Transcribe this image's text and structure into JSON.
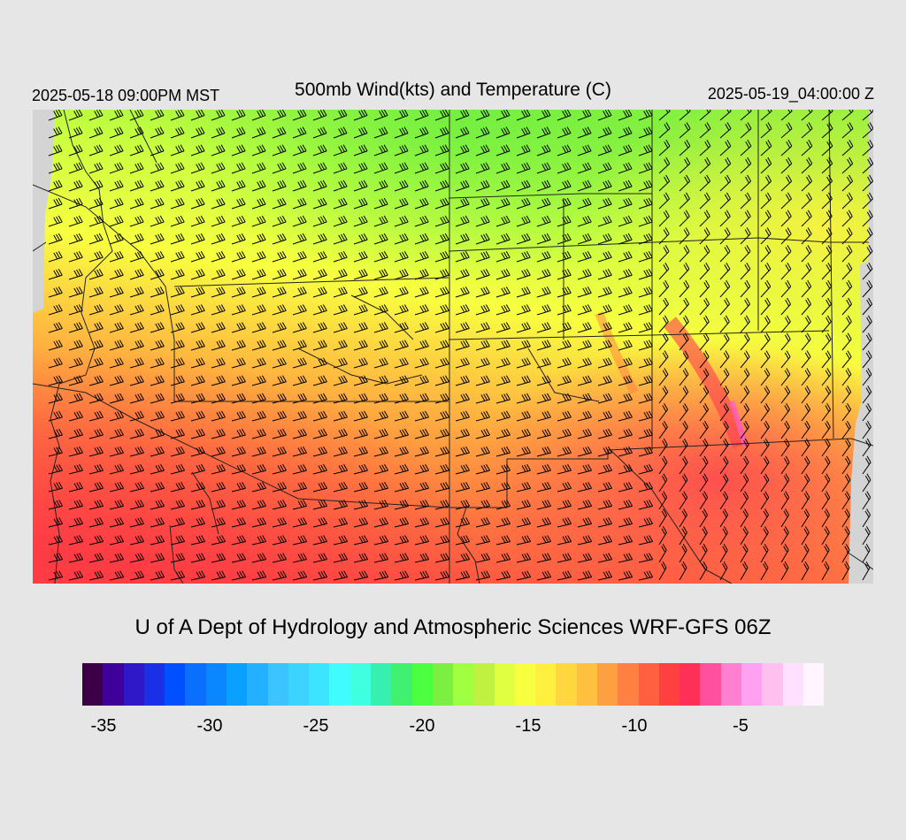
{
  "header": {
    "title": "500mb Wind(kts) and Temperature (C)",
    "valid_local": "2025-05-18 09:00PM MST",
    "valid_utc": "2025-05-19_04:00:00 Z"
  },
  "footer": {
    "credit": "U of A Dept of Hydrology and Atmospheric Sciences WRF-GFS 06Z"
  },
  "colorbar": {
    "colors": [
      "#3b0045",
      "#40009a",
      "#2e18c8",
      "#1930e6",
      "#0050ff",
      "#0a6eff",
      "#0a86ff",
      "#0aa0ff",
      "#22b0ff",
      "#3cc4ff",
      "#3cd4ff",
      "#3ce4ff",
      "#40fcff",
      "#40ffe0",
      "#36f0b0",
      "#40f070",
      "#4cff40",
      "#7cf040",
      "#a0ff40",
      "#c0f040",
      "#e0ff40",
      "#f8ff40",
      "#fff040",
      "#ffd840",
      "#ffc040",
      "#ffa040",
      "#ff8040",
      "#ff6040",
      "#ff4040",
      "#ff3058",
      "#ff50a0",
      "#ff80d0",
      "#ffa0f0",
      "#ffc0f0",
      "#ffe0ff",
      "#fff4ff"
    ],
    "tick_labels": [
      "-35",
      "-30",
      "-25",
      "-20",
      "-15",
      "-10",
      "-5"
    ]
  },
  "map": {
    "temperature_colors": {
      "green": "#90f040",
      "yellow": "#f0ff40",
      "orange": "#ffb040",
      "red": "#ff4848",
      "magenta": "#ff50a0"
    }
  }
}
